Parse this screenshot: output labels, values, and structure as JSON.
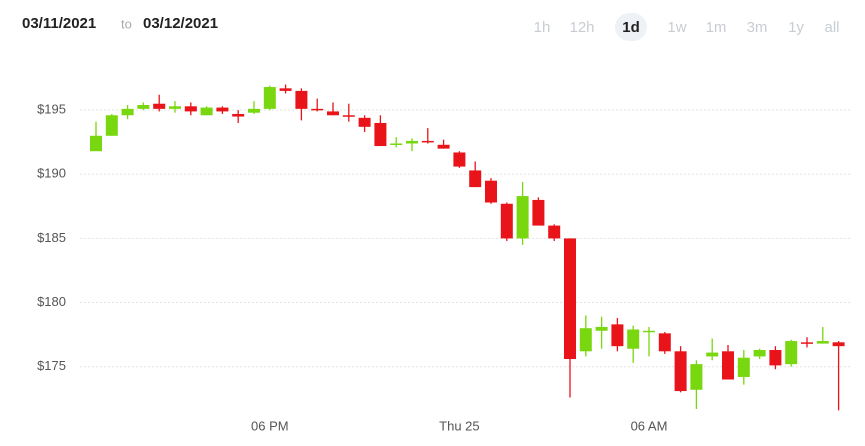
{
  "chart_data": {
    "type": "candlestick",
    "date_from": "03/11/2021",
    "date_separator": "to",
    "date_to": "03/12/2021",
    "ranges": [
      "1h",
      "12h",
      "1d",
      "1w",
      "1m",
      "3m",
      "1y",
      "all"
    ],
    "selected_range": "1d",
    "categories": [
      null,
      null,
      null,
      null,
      null,
      null,
      null,
      null,
      null,
      null,
      null,
      "06 PM",
      null,
      null,
      null,
      null,
      null,
      null,
      null,
      null,
      null,
      null,
      null,
      "Thu 25",
      null,
      null,
      null,
      null,
      null,
      null,
      null,
      null,
      null,
      null,
      null,
      "06 AM",
      null,
      null,
      null,
      null,
      null,
      null,
      null,
      null,
      null,
      null,
      null,
      null
    ],
    "open": [
      191.8,
      193.0,
      194.6,
      195.1,
      195.5,
      195.1,
      195.3,
      194.6,
      195.2,
      194.7,
      194.8,
      195.1,
      196.7,
      196.5,
      195.1,
      194.9,
      194.6,
      194.4,
      194.0,
      192.3,
      192.4,
      192.6,
      192.3,
      191.7,
      190.3,
      189.5,
      187.7,
      185.0,
      188.0,
      186.0,
      185.0,
      176.2,
      177.8,
      178.3,
      176.4,
      177.7,
      177.6,
      176.2,
      173.2,
      175.8,
      176.2,
      174.2,
      175.8,
      176.3,
      175.2,
      176.9,
      176.8,
      176.9
    ],
    "high": [
      194.1,
      194.7,
      195.4,
      195.6,
      196.2,
      195.7,
      195.6,
      195.3,
      195.3,
      195.0,
      195.7,
      196.9,
      197.0,
      196.7,
      195.9,
      195.6,
      195.5,
      194.6,
      194.6,
      192.9,
      192.8,
      193.6,
      192.7,
      191.8,
      191.0,
      189.7,
      187.8,
      189.4,
      188.2,
      186.1,
      185.0,
      179.0,
      178.9,
      178.8,
      178.2,
      178.1,
      177.7,
      176.6,
      175.5,
      177.2,
      176.7,
      176.3,
      176.4,
      176.6,
      177.1,
      177.3,
      178.1,
      177.0
    ],
    "low": [
      191.8,
      193.0,
      194.3,
      195.0,
      194.9,
      194.8,
      194.6,
      194.6,
      194.7,
      194.0,
      194.7,
      195.0,
      196.3,
      194.2,
      194.9,
      194.6,
      194.1,
      193.3,
      192.2,
      192.1,
      191.8,
      192.4,
      192.0,
      190.5,
      189.0,
      187.7,
      184.8,
      184.5,
      186.0,
      184.8,
      172.6,
      175.8,
      176.4,
      176.2,
      175.3,
      175.8,
      176.0,
      173.0,
      171.7,
      175.5,
      174.0,
      173.6,
      175.6,
      174.8,
      175.0,
      176.5,
      176.8,
      171.6
    ],
    "close": [
      193.0,
      194.6,
      195.1,
      195.4,
      195.1,
      195.3,
      194.9,
      195.2,
      194.9,
      194.5,
      195.1,
      196.8,
      196.5,
      195.1,
      195.0,
      194.6,
      194.5,
      193.7,
      192.2,
      192.4,
      192.6,
      192.5,
      192.0,
      190.6,
      189.0,
      187.8,
      185.0,
      188.3,
      186.0,
      185.0,
      175.6,
      178.0,
      178.1,
      176.6,
      177.9,
      177.8,
      176.2,
      173.1,
      175.2,
      176.1,
      174.0,
      175.7,
      176.3,
      175.1,
      177.0,
      176.8,
      177.0,
      176.6
    ],
    "up_color": "#79d70f",
    "down_color": "#e8141a",
    "ylim": [
      171,
      200
    ],
    "yticks": [
      {
        "value": 175,
        "label": "$175"
      },
      {
        "value": 180,
        "label": "$180"
      },
      {
        "value": 185,
        "label": "$185"
      },
      {
        "value": 190,
        "label": "$190"
      },
      {
        "value": 195,
        "label": "$195"
      }
    ],
    "grid": true
  }
}
